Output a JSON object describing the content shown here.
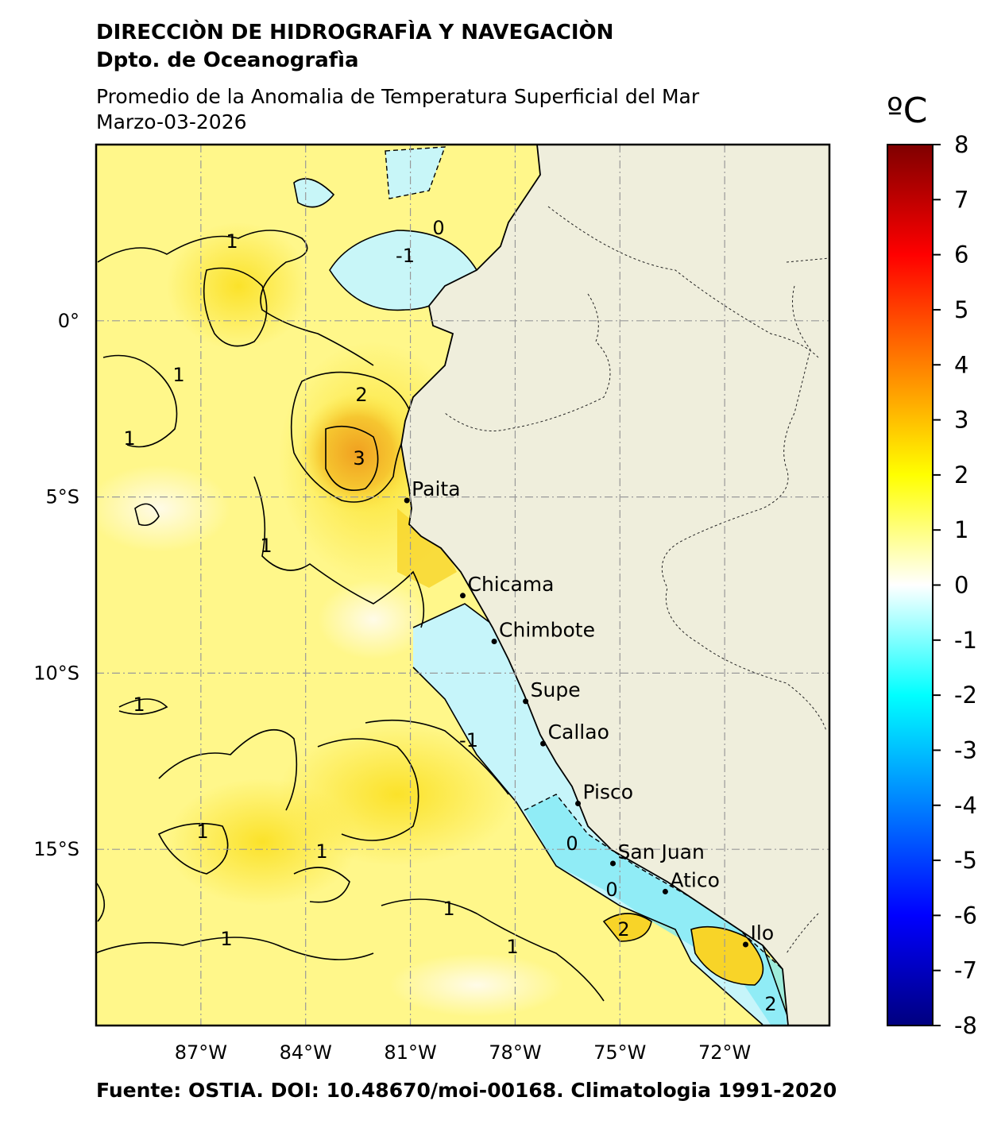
{
  "header": {
    "org": "DIRECCIÒN DE HIDROGRAFÌA Y NAVEGACIÒN",
    "dept": "Dpto. de Oceanografìa",
    "title": "Promedio de la Anomalia de Temperatura Superficial del Mar",
    "date": "Marzo-03-2026"
  },
  "footer": {
    "source": "Fuente: OSTIA. DOI: 10.48670/moi-00168. Climatologia 1991-2020"
  },
  "map": {
    "lon_range": [
      -90,
      -69
    ],
    "lat_range": [
      -20,
      5
    ],
    "lon_ticks": [
      {
        "value": -87,
        "label": "87°W"
      },
      {
        "value": -84,
        "label": "84°W"
      },
      {
        "value": -81,
        "label": "81°W"
      },
      {
        "value": -78,
        "label": "78°W"
      },
      {
        "value": -75,
        "label": "75°W"
      },
      {
        "value": -72,
        "label": "72°W"
      }
    ],
    "lat_ticks": [
      {
        "value": 0,
        "label": "0°"
      },
      {
        "value": -5,
        "label": "5°S"
      },
      {
        "value": -10,
        "label": "10°S"
      },
      {
        "value": -15,
        "label": "15°S"
      }
    ],
    "gridlines": true,
    "land_color": "#efeedc",
    "ocean_base_color": "#fff78a",
    "ports": [
      {
        "name": "Paita",
        "lon": -81.1,
        "lat": -5.1
      },
      {
        "name": "Chicama",
        "lon": -79.5,
        "lat": -7.8
      },
      {
        "name": "Chimbote",
        "lon": -78.6,
        "lat": -9.1
      },
      {
        "name": "Supe",
        "lon": -77.7,
        "lat": -10.8
      },
      {
        "name": "Callao",
        "lon": -77.2,
        "lat": -12.0
      },
      {
        "name": "Pisco",
        "lon": -76.2,
        "lat": -13.7
      },
      {
        "name": "San Juan",
        "lon": -75.2,
        "lat": -15.4
      },
      {
        "name": "Atico",
        "lon": -73.7,
        "lat": -16.2
      },
      {
        "name": "Ilo",
        "lon": -71.4,
        "lat": -17.7
      }
    ],
    "contour_labels": [
      "0",
      "1",
      "2",
      "3",
      "-1"
    ]
  },
  "colorbar": {
    "unit": "ºC",
    "min": -8,
    "max": 8,
    "ticks": [
      "8",
      "7",
      "6",
      "5",
      "4",
      "3",
      "2",
      "1",
      "0",
      "-1",
      "-2",
      "-3",
      "-4",
      "-5",
      "-6",
      "-7",
      "-8"
    ],
    "stops": [
      {
        "value": -8,
        "color": "#00007f"
      },
      {
        "value": -6,
        "color": "#0000ff"
      },
      {
        "value": -4,
        "color": "#0080ff"
      },
      {
        "value": -2,
        "color": "#00ffff"
      },
      {
        "value": 0,
        "color": "#ffffff"
      },
      {
        "value": 2,
        "color": "#ffff00"
      },
      {
        "value": 4,
        "color": "#ff8000"
      },
      {
        "value": 6,
        "color": "#ff0000"
      },
      {
        "value": 8,
        "color": "#7f0000"
      }
    ]
  }
}
